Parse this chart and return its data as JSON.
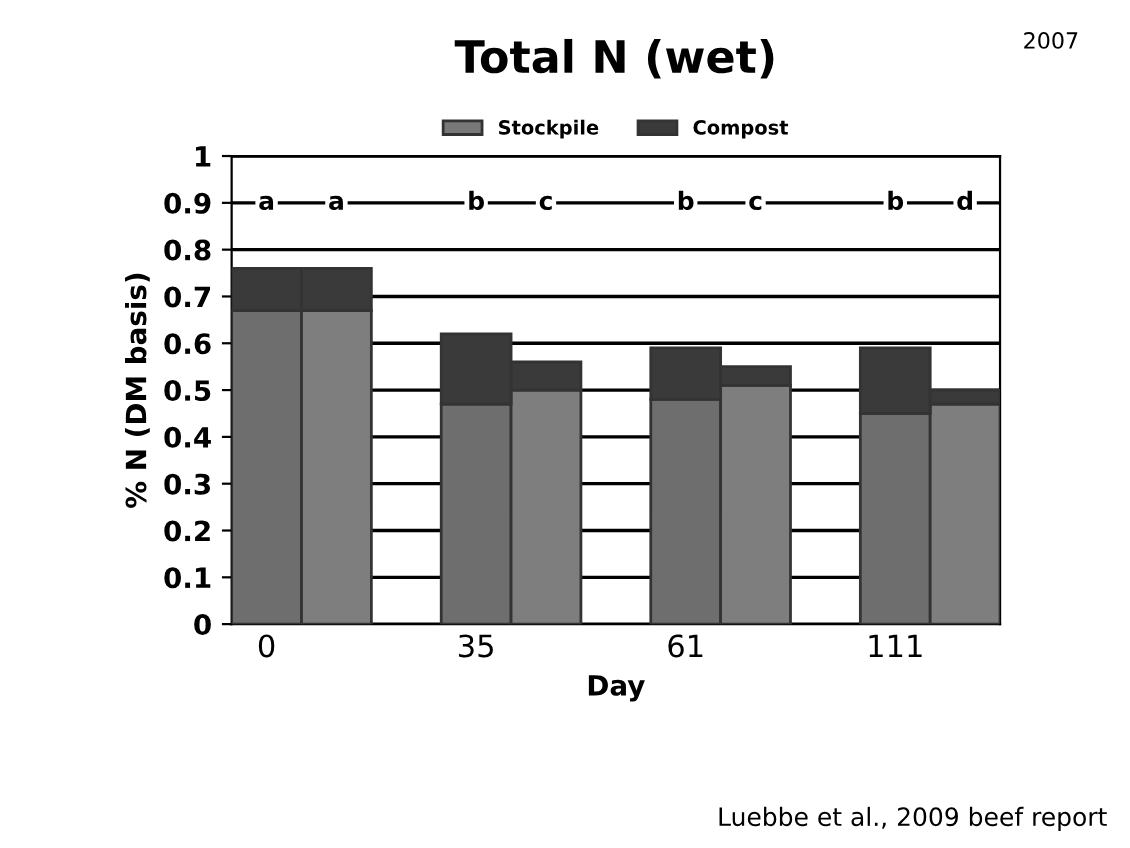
{
  "chart_data": {
    "type": "bar",
    "title": "Total N (wet)",
    "subtitle": "2007",
    "xlabel": "Day",
    "ylabel": "% N (DM basis)",
    "categories": [
      "0",
      null,
      "35",
      null,
      "61",
      null,
      "111",
      null
    ],
    "stacked": true,
    "series": [
      {
        "name": "Stockpile",
        "color": "#787878",
        "colors": [
          "#6e6e6e",
          "#7e7e7e",
          "#6e6e6e",
          "#7e7e7e",
          "#6e6e6e",
          "#7e7e7e",
          "#6e6e6e",
          "#7e7e7e"
        ],
        "values": [
          0.67,
          0.67,
          0.47,
          0.5,
          0.48,
          0.51,
          0.45,
          0.47
        ]
      },
      {
        "name": "Compost",
        "color": "#3a3a3a",
        "values": [
          0.09,
          0.09,
          0.15,
          0.06,
          0.11,
          0.04,
          0.14,
          0.03
        ]
      }
    ],
    "ylim": [
      0,
      1
    ],
    "yticks": [
      0,
      0.1,
      0.2,
      0.3,
      0.4,
      0.5,
      0.6,
      0.7,
      0.8,
      0.9,
      1
    ],
    "grid": "y",
    "legend": "top",
    "annotations": [
      "a",
      "a",
      "b",
      "c",
      "b",
      "c",
      "b",
      "d",
      "Luebbe et al., 2009 beef report"
    ]
  }
}
